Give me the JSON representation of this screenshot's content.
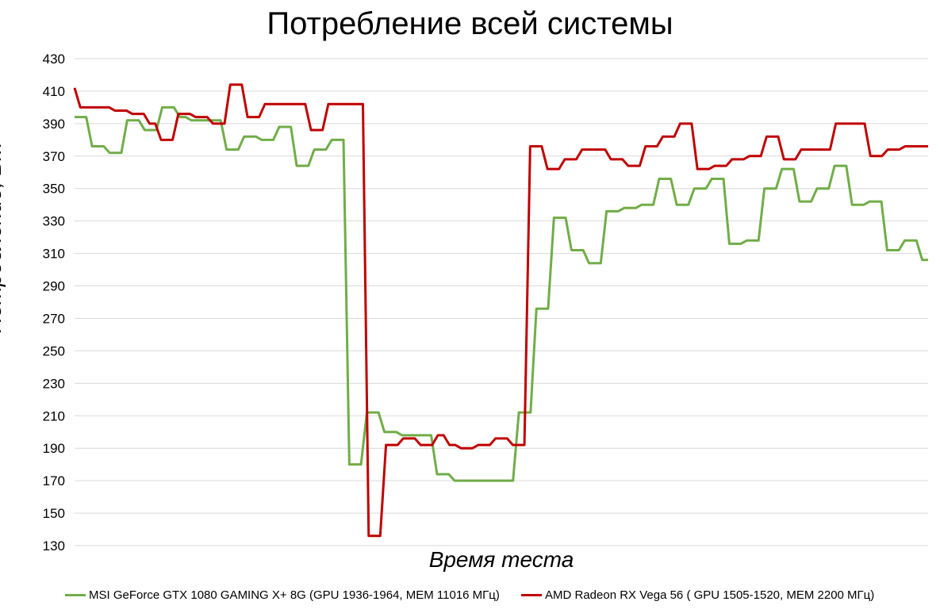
{
  "chart_data": {
    "type": "line",
    "title": "Потребление всей системы",
    "xlabel": "Время теста",
    "ylabel": "Потребление, Вт",
    "ylim": [
      130,
      430
    ],
    "yticks": [
      130,
      150,
      170,
      190,
      210,
      230,
      250,
      270,
      290,
      310,
      330,
      350,
      370,
      390,
      410,
      430
    ],
    "grid": true,
    "legend_position": "bottom",
    "series": [
      {
        "name": "MSI GeForce GTX 1080 GAMING X+ 8G (GPU 1936-1964, MEM 11016 МГц)",
        "color": "#70ad47",
        "values": [
          394,
          394,
          394,
          376,
          376,
          376,
          372,
          372,
          372,
          392,
          392,
          392,
          386,
          386,
          386,
          400,
          400,
          400,
          394,
          394,
          392,
          392,
          392,
          392,
          392,
          392,
          374,
          374,
          374,
          382,
          382,
          382,
          380,
          380,
          380,
          388,
          388,
          388,
          364,
          364,
          364,
          374,
          374,
          374,
          380,
          380,
          380,
          180,
          180,
          180,
          212,
          212,
          212,
          200,
          200,
          200,
          198,
          198,
          198,
          198,
          198,
          198,
          174,
          174,
          174,
          170,
          170,
          170,
          170,
          170,
          170,
          170,
          170,
          170,
          170,
          170,
          212,
          212,
          212,
          276,
          276,
          276,
          332,
          332,
          332,
          312,
          312,
          312,
          304,
          304,
          304,
          336,
          336,
          336,
          338,
          338,
          338,
          340,
          340,
          340,
          356,
          356,
          356,
          340,
          340,
          340,
          350,
          350,
          350,
          356,
          356,
          356,
          316,
          316,
          316,
          318,
          318,
          318,
          350,
          350,
          350,
          362,
          362,
          362,
          342,
          342,
          342,
          350,
          350,
          350,
          364,
          364,
          364,
          340,
          340,
          340,
          342,
          342,
          342,
          312,
          312,
          312,
          318,
          318,
          318,
          306,
          306
        ]
      },
      {
        "name": "AMD Radeon RX Vega 56 ( GPU 1505-1520, MEM 2200 МГц)",
        "color": "#c00000",
        "values": [
          412,
          400,
          400,
          400,
          400,
          400,
          400,
          398,
          398,
          398,
          396,
          396,
          396,
          390,
          390,
          380,
          380,
          380,
          396,
          396,
          396,
          394,
          394,
          394,
          390,
          390,
          390,
          414,
          414,
          414,
          394,
          394,
          394,
          402,
          402,
          402,
          402,
          402,
          402,
          402,
          402,
          386,
          386,
          386,
          402,
          402,
          402,
          402,
          402,
          402,
          402,
          136,
          136,
          136,
          192,
          192,
          192,
          196,
          196,
          196,
          192,
          192,
          192,
          198,
          198,
          192,
          192,
          190,
          190,
          190,
          192,
          192,
          192,
          196,
          196,
          196,
          192,
          192,
          192,
          376,
          376,
          376,
          362,
          362,
          362,
          368,
          368,
          368,
          374,
          374,
          374,
          374,
          374,
          368,
          368,
          368,
          364,
          364,
          364,
          376,
          376,
          376,
          382,
          382,
          382,
          390,
          390,
          390,
          362,
          362,
          362,
          364,
          364,
          364,
          368,
          368,
          368,
          370,
          370,
          370,
          382,
          382,
          382,
          368,
          368,
          368,
          374,
          374,
          374,
          374,
          374,
          374,
          390,
          390,
          390,
          390,
          390,
          390,
          370,
          370,
          370,
          374,
          374,
          374,
          376,
          376,
          376,
          376,
          376
        ]
      }
    ]
  }
}
